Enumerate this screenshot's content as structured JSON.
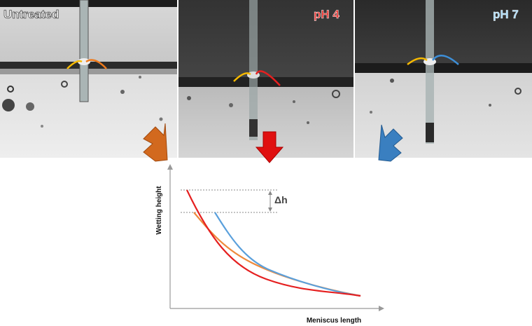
{
  "panels": [
    {
      "label": "Untreated"
    },
    {
      "label": "pH 4"
    },
    {
      "label": "pH 7"
    }
  ],
  "plot": {
    "y_axis_label": "Wetting height",
    "x_axis_label": "Meniscus length",
    "annotation": "Δh"
  }
}
